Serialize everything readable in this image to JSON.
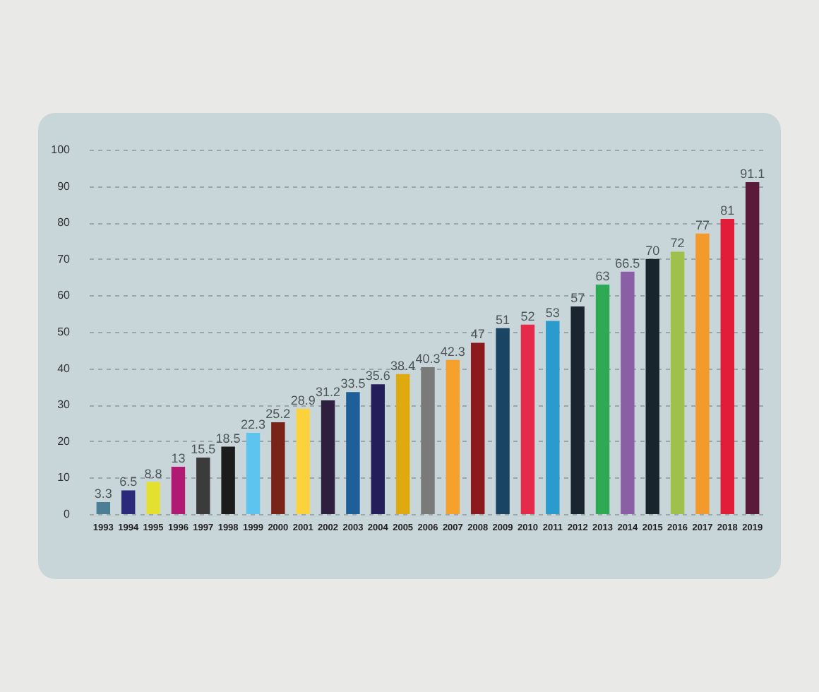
{
  "chart_data": {
    "type": "bar",
    "categories": [
      "1993",
      "1994",
      "1995",
      "1996",
      "1997",
      "1998",
      "1999",
      "2000",
      "2001",
      "2002",
      "2003",
      "2004",
      "2005",
      "2006",
      "2007",
      "2008",
      "2009",
      "2010",
      "2011",
      "2012",
      "2013",
      "2014",
      "2015",
      "2016",
      "2017",
      "2018",
      "2019"
    ],
    "values": [
      3.3,
      6.5,
      8.8,
      13,
      15.5,
      18.5,
      22.3,
      25.2,
      28.9,
      31.2,
      33.5,
      35.6,
      38.4,
      40.3,
      42.3,
      47,
      51,
      52,
      53,
      57,
      63,
      66.5,
      70,
      72,
      77,
      81,
      91.1
    ],
    "colors": [
      "#4a7f96",
      "#2b2a7a",
      "#e4e030",
      "#b01a72",
      "#3b3b3b",
      "#1c1c1c",
      "#5cc4ef",
      "#7a2318",
      "#fcd23c",
      "#2e1f3f",
      "#1f5f99",
      "#241e5a",
      "#dfaa10",
      "#7a7a7a",
      "#f6a12c",
      "#8c1a1c",
      "#1a4463",
      "#e52a4a",
      "#2a9bcc",
      "#1a2530",
      "#2eaa55",
      "#8a5fa6",
      "#17252c",
      "#9fc04a",
      "#f39a2c",
      "#e11d3a",
      "#5a1a3a"
    ],
    "ylim": [
      0,
      100
    ],
    "yticks": [
      0,
      10,
      20,
      30,
      40,
      50,
      60,
      70,
      80,
      90,
      100
    ],
    "grid": "y",
    "data_labels": true
  }
}
